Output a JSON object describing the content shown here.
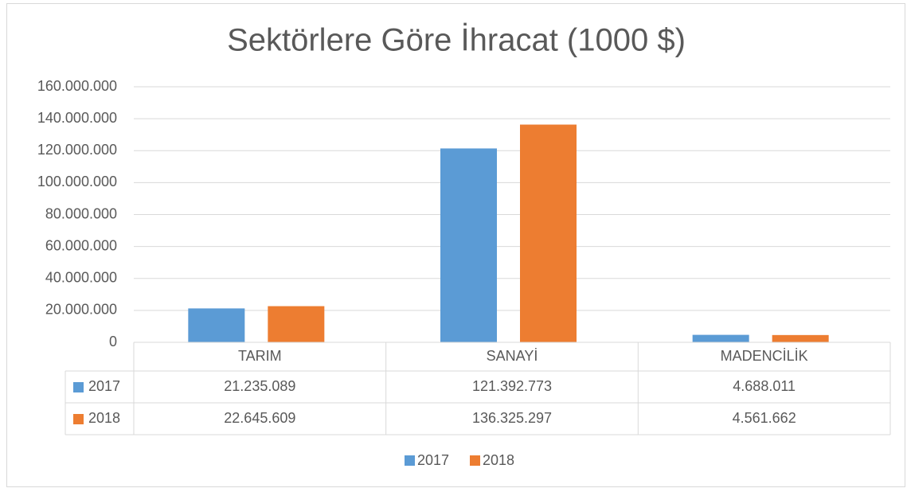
{
  "chart_data": {
    "type": "bar",
    "title": "Sektörlere Göre İhracat (1000 $)",
    "categories": [
      "TARIM",
      "SANAYİ",
      "MADENCİLİK"
    ],
    "series": [
      {
        "name": "2017",
        "color": "#5b9bd5",
        "values": [
          21235089,
          121392773,
          4688011
        ],
        "value_labels": [
          "21.235.089",
          "121.392.773",
          "4.688.011"
        ]
      },
      {
        "name": "2018",
        "color": "#ed7d31",
        "values": [
          22645609,
          136325297,
          4561662
        ],
        "value_labels": [
          "22.645.609",
          "136.325.297",
          "4.561.662"
        ]
      }
    ],
    "ylim": [
      0,
      160000000
    ],
    "yticks": [
      0,
      {
        "value": 20000000,
        "label": "20.000.000"
      },
      {
        "value": 40000000,
        "label": "40.000.000"
      },
      {
        "value": 60000000,
        "label": "60.000.000"
      },
      {
        "value": 80000000,
        "label": "80.000.000"
      },
      {
        "value": 100000000,
        "label": "100.000.000"
      },
      {
        "value": 120000000,
        "label": "120.000.000"
      },
      {
        "value": 140000000,
        "label": "140.000.000"
      },
      {
        "value": 160000000,
        "label": "160.000.000"
      }
    ],
    "grid": true,
    "legend": "bottom"
  }
}
